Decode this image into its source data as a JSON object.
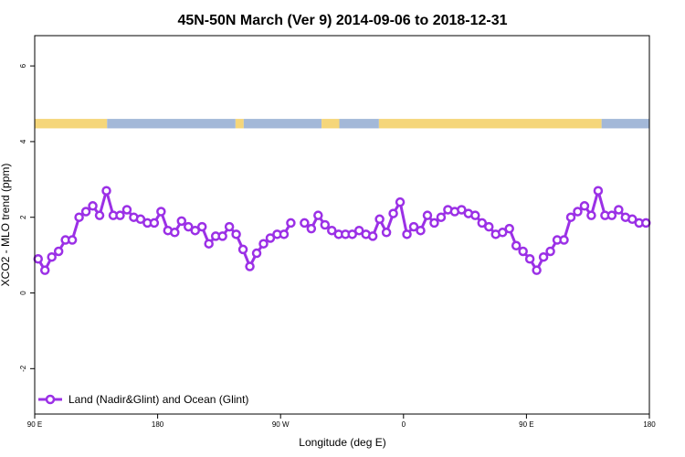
{
  "chart_data": {
    "type": "line",
    "title": "45N-50N March (Ver 9)   2014-09-06 to 2018-12-31",
    "xlabel": "Longitude (deg E)",
    "ylabel": "XCO2 - MLO trend (ppm)",
    "xlim": [
      90,
      540
    ],
    "ylim": [
      -3.2,
      6.8
    ],
    "x_ticks": [
      {
        "value": 90,
        "label": "90 E"
      },
      {
        "value": 180,
        "label": "180"
      },
      {
        "value": 270,
        "label": "90 W"
      },
      {
        "value": 360,
        "label": "0"
      },
      {
        "value": 450,
        "label": "90 E"
      },
      {
        "value": 540,
        "label": "180"
      }
    ],
    "y_ticks": [
      {
        "value": -2,
        "label": "-2"
      },
      {
        "value": 0,
        "label": "0"
      },
      {
        "value": 2,
        "label": "2"
      },
      {
        "value": 4,
        "label": "4"
      },
      {
        "value": 6,
        "label": "6"
      }
    ],
    "legend": {
      "position": "bottom-left",
      "entries": [
        "Land (Nadir&Glint) and Ocean (Glint)"
      ]
    },
    "land_ocean_strip": {
      "y_range": [
        4.35,
        4.6
      ],
      "land_color": "#f5d67a",
      "ocean_color": "#a3b8d8",
      "segments": [
        {
          "from": 90,
          "to": 143,
          "kind": "land"
        },
        {
          "from": 143,
          "to": 237,
          "kind": "ocean"
        },
        {
          "from": 237,
          "to": 243,
          "kind": "land"
        },
        {
          "from": 243,
          "to": 300,
          "kind": "ocean"
        },
        {
          "from": 300,
          "to": 313,
          "kind": "land"
        },
        {
          "from": 313,
          "to": 342,
          "kind": "ocean"
        },
        {
          "from": 342,
          "to": 505,
          "kind": "land"
        },
        {
          "from": 505,
          "to": 540,
          "kind": "ocean"
        }
      ]
    },
    "series": [
      {
        "name": "Land (Nadir&Glint) and Ocean (Glint)",
        "color": "#9b30e6",
        "x": [
          92.5,
          97.5,
          102.5,
          107.5,
          112.5,
          117.5,
          122.5,
          127.5,
          132.5,
          137.5,
          142.5,
          147.5,
          152.5,
          157.5,
          162.5,
          167.5,
          172.5,
          177.5,
          182.5,
          187.5,
          192.5,
          197.5,
          202.5,
          207.5,
          212.5,
          217.5,
          222.5,
          227.5,
          232.5,
          237.5,
          242.5,
          247.5,
          252.5,
          257.5,
          262.5,
          267.5,
          272.5,
          277.5,
          282.5,
          287.5,
          292.5,
          297.5,
          302.5,
          307.5,
          312.5,
          317.5,
          322.5,
          327.5,
          332.5,
          337.5,
          342.5,
          347.5,
          352.5,
          357.5,
          362.5,
          367.5,
          372.5,
          377.5,
          382.5,
          387.5,
          392.5,
          397.5,
          402.5,
          407.5,
          412.5,
          417.5,
          422.5,
          427.5,
          432.5,
          437.5,
          442.5,
          447.5,
          452.5,
          457.5,
          462.5,
          467.5,
          472.5,
          477.5,
          482.5,
          487.5,
          492.5,
          497.5,
          502.5,
          507.5,
          512.5,
          517.5,
          522.5,
          527.5,
          532.5,
          537.5
        ],
        "y": [
          0.9,
          0.6,
          0.95,
          1.1,
          1.4,
          1.4,
          2.0,
          2.15,
          2.3,
          2.05,
          2.7,
          2.05,
          2.05,
          2.2,
          2.0,
          1.95,
          1.85,
          1.85,
          2.15,
          1.65,
          1.6,
          1.9,
          1.75,
          1.65,
          1.75,
          1.3,
          1.5,
          1.5,
          1.75,
          1.55,
          1.15,
          0.7,
          1.05,
          1.3,
          1.45,
          1.55,
          1.55,
          1.85,
          null,
          1.85,
          1.7,
          2.05,
          1.8,
          1.65,
          1.55,
          1.55,
          1.55,
          1.65,
          1.55,
          1.5,
          1.95,
          1.6,
          2.1,
          2.4,
          1.55,
          1.75,
          1.65,
          2.05,
          1.85,
          2.0,
          2.2,
          2.15,
          2.2,
          2.1,
          2.05,
          1.85,
          1.75,
          1.55,
          1.6,
          1.7,
          1.25,
          1.1,
          0.9,
          0.6,
          0.95,
          1.1,
          1.4,
          1.4,
          2.0,
          2.15,
          2.3,
          2.05,
          2.7,
          2.05,
          2.05,
          2.2,
          2.0,
          1.95,
          1.85,
          1.85
        ]
      }
    ]
  }
}
